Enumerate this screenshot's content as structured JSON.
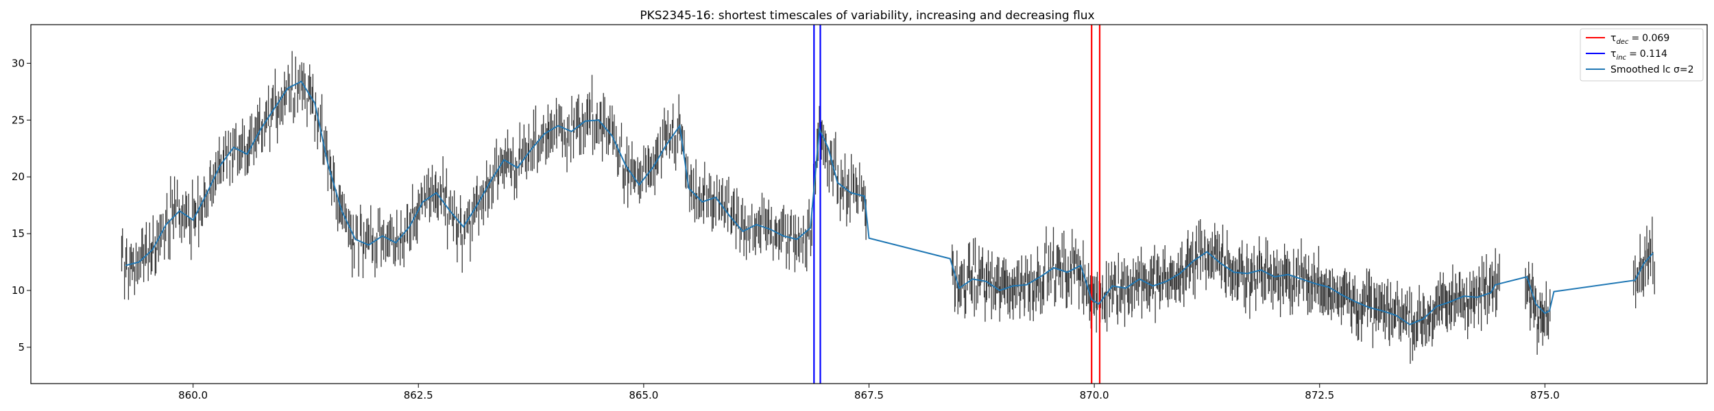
{
  "chart_data": {
    "type": "line",
    "title": "PKS2345-16: shortest timescales of variability, increasing and decreasing flux",
    "xlabel": "",
    "ylabel": "",
    "xlim": [
      858.2,
      876.8
    ],
    "ylim": [
      1.8,
      33.4
    ],
    "xticks": [
      860.0,
      862.5,
      865.0,
      867.5,
      870.0,
      872.5,
      875.0
    ],
    "xtick_labels": [
      "860.0",
      "862.5",
      "865.0",
      "867.5",
      "870.0",
      "872.5",
      "875.0"
    ],
    "yticks": [
      5,
      10,
      15,
      20,
      25,
      30
    ],
    "ytick_labels": [
      "5",
      "10",
      "15",
      "20",
      "25",
      "30"
    ],
    "grid": false,
    "legend_position": "top-right",
    "vlines": [
      {
        "legend": "dec",
        "value": "0.069",
        "color": "#ff0000",
        "x": [
          869.97,
          870.06
        ]
      },
      {
        "legend": "inc",
        "value": "0.114",
        "color": "#0000ff",
        "x": [
          866.89,
          866.96
        ]
      }
    ],
    "series": [
      {
        "name": "Smoothed lc σ=2",
        "role": "smoothed",
        "color": "#1f77b4",
        "x": [
          859.25,
          859.4,
          859.55,
          859.7,
          859.85,
          860.0,
          860.15,
          860.3,
          860.45,
          860.6,
          860.75,
          860.9,
          861.05,
          861.2,
          861.35,
          861.5,
          861.65,
          861.8,
          861.95,
          862.1,
          862.25,
          862.4,
          862.55,
          862.7,
          862.85,
          863.0,
          863.15,
          863.3,
          863.45,
          863.6,
          863.75,
          863.9,
          864.05,
          864.2,
          864.35,
          864.5,
          864.65,
          864.8,
          864.95,
          865.1,
          865.25,
          865.4,
          865.5,
          865.65,
          865.8,
          865.95,
          866.1,
          866.25,
          866.4,
          866.55,
          866.7,
          866.85,
          866.95,
          867.05,
          867.15,
          867.3,
          867.45,
          867.5,
          868.4,
          868.5,
          868.65,
          868.8,
          868.95,
          869.1,
          869.25,
          869.4,
          869.55,
          869.7,
          869.85,
          869.97,
          870.05,
          870.2,
          870.35,
          870.5,
          870.65,
          870.8,
          870.95,
          871.1,
          871.25,
          871.4,
          871.55,
          871.7,
          871.85,
          872.0,
          872.15,
          872.3,
          872.45,
          872.6,
          872.75,
          872.9,
          873.05,
          873.2,
          873.35,
          873.5,
          873.65,
          873.8,
          873.95,
          874.1,
          874.25,
          874.4,
          874.45,
          874.8,
          874.9,
          875.0,
          875.05,
          875.1,
          876.0,
          876.1,
          876.2
        ],
        "values": [
          12.2,
          12.5,
          13.6,
          15.8,
          17.0,
          16.2,
          18.5,
          21.0,
          22.6,
          22.0,
          24.2,
          26.0,
          27.8,
          28.4,
          26.5,
          21.0,
          17.0,
          14.5,
          14.0,
          14.8,
          14.2,
          15.6,
          17.8,
          18.6,
          17.0,
          15.6,
          17.5,
          19.6,
          21.5,
          20.8,
          22.4,
          23.8,
          24.5,
          24.0,
          24.9,
          25.0,
          23.6,
          21.0,
          19.3,
          20.8,
          22.8,
          24.5,
          19.0,
          17.8,
          18.2,
          16.6,
          15.2,
          15.8,
          15.4,
          14.8,
          14.5,
          15.5,
          24.2,
          22.5,
          19.5,
          18.6,
          18.3,
          14.6,
          12.8,
          10.2,
          11.0,
          10.8,
          10.0,
          10.4,
          10.5,
          11.2,
          12.0,
          11.6,
          12.2,
          9.2,
          8.8,
          10.4,
          10.2,
          11.0,
          10.4,
          10.8,
          11.5,
          12.6,
          13.4,
          12.4,
          11.6,
          11.5,
          11.8,
          11.2,
          11.4,
          11.0,
          10.6,
          10.3,
          9.6,
          9.0,
          8.5,
          8.2,
          7.8,
          7.0,
          7.5,
          8.6,
          9.0,
          9.5,
          9.4,
          9.8,
          10.5,
          11.2,
          8.8,
          8.0,
          8.2,
          9.9,
          10.9,
          12.4,
          13.3
        ]
      },
      {
        "name": "",
        "role": "observations",
        "color": "#333333",
        "segments": [
          {
            "x_start": 859.2,
            "x_end": 867.48,
            "count": 560
          },
          {
            "x_start": 868.42,
            "x_end": 874.5,
            "count": 520
          },
          {
            "x_start": 874.78,
            "x_end": 875.06,
            "count": 26
          },
          {
            "x_start": 875.98,
            "x_end": 876.22,
            "count": 20
          }
        ],
        "error_bar": 1.3
      }
    ],
    "legend": {
      "entries": [
        {
          "key": "dec",
          "symbol": "τ",
          "subscript": "dec",
          "value": "0.069",
          "color": "#ff0000"
        },
        {
          "key": "inc",
          "symbol": "τ",
          "subscript": "inc",
          "value": "0.114",
          "color": "#0000ff"
        },
        {
          "key": "smooth",
          "label": "Smoothed lc σ=2",
          "color": "#1f77b4"
        }
      ],
      "equals": "="
    }
  }
}
